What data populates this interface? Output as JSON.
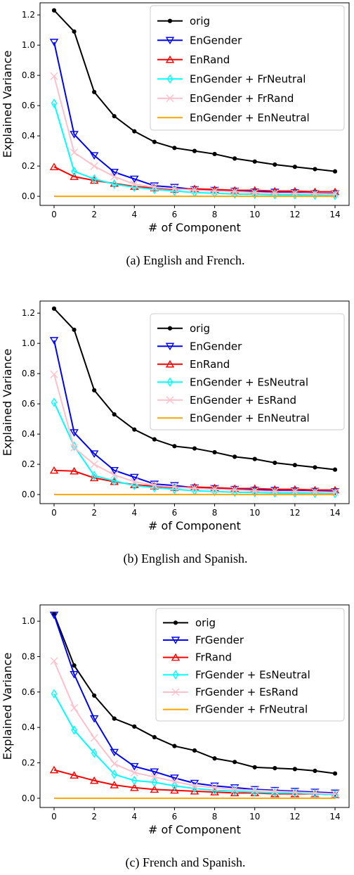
{
  "chart_data": [
    {
      "type": "line",
      "caption": "(a) English and French.",
      "xlabel": "# of Component",
      "ylabel": "Explained Variance",
      "xlim": [
        -0.7,
        14.7
      ],
      "ylim": [
        -0.06,
        1.28
      ],
      "xticks": [
        0,
        2,
        4,
        6,
        8,
        10,
        12,
        14
      ],
      "yticks": [
        0.0,
        0.2,
        0.4,
        0.6,
        0.8,
        1.0,
        1.2
      ],
      "ytick_labels": [
        "0.0",
        "0.2",
        "0.4",
        "0.6",
        "0.8",
        "1.0",
        "1.2"
      ],
      "legend_position": "upper-right",
      "grid": false,
      "x": [
        0,
        1,
        2,
        3,
        4,
        5,
        6,
        7,
        8,
        9,
        10,
        11,
        12,
        13,
        14
      ],
      "series": [
        {
          "name": "orig",
          "color": "#000000",
          "marker": "dot",
          "values": [
            1.23,
            1.09,
            0.69,
            0.53,
            0.43,
            0.36,
            0.32,
            0.3,
            0.28,
            0.25,
            0.23,
            0.21,
            0.195,
            0.18,
            0.165
          ]
        },
        {
          "name": "EnGender",
          "color": "#0000ff",
          "marker": "tri-down",
          "values": [
            1.02,
            0.41,
            0.27,
            0.16,
            0.115,
            0.07,
            0.06,
            0.045,
            0.04,
            0.035,
            0.03,
            0.028,
            0.025,
            0.02,
            0.018
          ]
        },
        {
          "name": "EnRand",
          "color": "#ff0000",
          "marker": "tri-up",
          "values": [
            0.195,
            0.13,
            0.105,
            0.085,
            0.065,
            0.055,
            0.045,
            0.05,
            0.045,
            0.04,
            0.04,
            0.035,
            0.035,
            0.03,
            0.03
          ]
        },
        {
          "name": "EnGender + FrNeutral",
          "color": "#00ffff",
          "marker": "diamond",
          "values": [
            0.615,
            0.165,
            0.115,
            0.08,
            0.06,
            0.045,
            0.035,
            0.025,
            0.02,
            0.015,
            0.013,
            0.01,
            0.01,
            0.008,
            0.006
          ]
        },
        {
          "name": "EnGender + FrRand",
          "color": "#ffc0cb",
          "marker": "x",
          "values": [
            0.795,
            0.29,
            0.2,
            0.13,
            0.08,
            0.06,
            0.05,
            0.04,
            0.035,
            0.03,
            0.025,
            0.02,
            0.02,
            0.018,
            0.015
          ]
        },
        {
          "name": "EnGender + EnNeutral",
          "color": "#ffa500",
          "marker": "none",
          "values": [
            0,
            0,
            0,
            0,
            0,
            0,
            0,
            0,
            0,
            0,
            0,
            0,
            0,
            0,
            0
          ]
        }
      ]
    },
    {
      "type": "line",
      "caption": "(b) English and Spanish.",
      "xlabel": "# of Component",
      "ylabel": "Explained Variance",
      "xlim": [
        -0.7,
        14.7
      ],
      "ylim": [
        -0.06,
        1.28
      ],
      "xticks": [
        0,
        2,
        4,
        6,
        8,
        10,
        12,
        14
      ],
      "yticks": [
        0.0,
        0.2,
        0.4,
        0.6,
        0.8,
        1.0,
        1.2
      ],
      "ytick_labels": [
        "0.0",
        "0.2",
        "0.4",
        "0.6",
        "0.8",
        "1.0",
        "1.2"
      ],
      "legend_position": "upper-right",
      "grid": false,
      "x": [
        0,
        1,
        2,
        3,
        4,
        5,
        6,
        7,
        8,
        9,
        10,
        11,
        12,
        13,
        14
      ],
      "series": [
        {
          "name": "orig",
          "color": "#000000",
          "marker": "dot",
          "values": [
            1.23,
            1.09,
            0.69,
            0.53,
            0.43,
            0.365,
            0.32,
            0.305,
            0.28,
            0.25,
            0.235,
            0.21,
            0.195,
            0.18,
            0.165
          ]
        },
        {
          "name": "EnGender",
          "color": "#0000ff",
          "marker": "tri-down",
          "values": [
            1.02,
            0.41,
            0.27,
            0.16,
            0.115,
            0.07,
            0.06,
            0.045,
            0.04,
            0.035,
            0.03,
            0.028,
            0.025,
            0.022,
            0.02
          ]
        },
        {
          "name": "EnRand",
          "color": "#ff0000",
          "marker": "tri-up",
          "values": [
            0.16,
            0.155,
            0.11,
            0.085,
            0.065,
            0.055,
            0.045,
            0.05,
            0.045,
            0.04,
            0.04,
            0.035,
            0.035,
            0.03,
            0.03
          ]
        },
        {
          "name": "EnGender + EsNeutral",
          "color": "#00ffff",
          "marker": "diamond",
          "values": [
            0.61,
            0.32,
            0.125,
            0.09,
            0.06,
            0.045,
            0.035,
            0.025,
            0.02,
            0.015,
            0.013,
            0.01,
            0.01,
            0.008,
            0.006
          ]
        },
        {
          "name": "EnGender + EsRand",
          "color": "#ffc0cb",
          "marker": "x",
          "values": [
            0.795,
            0.31,
            0.2,
            0.13,
            0.085,
            0.06,
            0.05,
            0.04,
            0.035,
            0.03,
            0.025,
            0.02,
            0.02,
            0.018,
            0.015
          ]
        },
        {
          "name": "EnGender + EnNeutral",
          "color": "#ffa500",
          "marker": "none",
          "values": [
            0,
            0,
            0,
            0,
            0,
            0,
            0,
            0,
            0,
            0,
            0,
            0,
            0,
            0,
            0
          ]
        }
      ]
    },
    {
      "type": "line",
      "caption": "(c) French and Spanish.",
      "xlabel": "# of Component",
      "ylabel": "Explained Variance",
      "xlim": [
        -0.7,
        14.7
      ],
      "ylim": [
        -0.052,
        1.092
      ],
      "xticks": [
        0,
        2,
        4,
        6,
        8,
        10,
        12,
        14
      ],
      "yticks": [
        0.0,
        0.2,
        0.4,
        0.6,
        0.8,
        1.0
      ],
      "ytick_labels": [
        "0.0",
        "0.2",
        "0.4",
        "0.6",
        "0.8",
        "1.0"
      ],
      "legend_position": "upper-right",
      "grid": false,
      "x": [
        0,
        1,
        2,
        3,
        4,
        5,
        6,
        7,
        8,
        9,
        10,
        11,
        12,
        13,
        14
      ],
      "series": [
        {
          "name": "orig",
          "color": "#000000",
          "marker": "dot",
          "values": [
            1.04,
            0.75,
            0.58,
            0.45,
            0.405,
            0.345,
            0.295,
            0.27,
            0.225,
            0.205,
            0.175,
            0.17,
            0.165,
            0.155,
            0.14
          ]
        },
        {
          "name": "FrGender",
          "color": "#0000ff",
          "marker": "tri-down",
          "values": [
            1.035,
            0.7,
            0.45,
            0.26,
            0.18,
            0.15,
            0.115,
            0.085,
            0.07,
            0.06,
            0.05,
            0.045,
            0.04,
            0.035,
            0.03
          ]
        },
        {
          "name": "FrRand",
          "color": "#ff0000",
          "marker": "tri-up",
          "values": [
            0.16,
            0.13,
            0.1,
            0.075,
            0.06,
            0.05,
            0.045,
            0.04,
            0.035,
            0.03,
            0.03,
            0.025,
            0.025,
            0.025,
            0.02
          ]
        },
        {
          "name": "FrGender + EsNeutral",
          "color": "#00ffff",
          "marker": "diamond",
          "values": [
            0.59,
            0.385,
            0.255,
            0.135,
            0.1,
            0.09,
            0.07,
            0.055,
            0.045,
            0.04,
            0.035,
            0.03,
            0.03,
            0.025,
            0.02
          ]
        },
        {
          "name": "FrGender + EsRand",
          "color": "#ffc0cb",
          "marker": "x",
          "values": [
            0.775,
            0.51,
            0.34,
            0.195,
            0.145,
            0.12,
            0.095,
            0.07,
            0.06,
            0.05,
            0.045,
            0.04,
            0.035,
            0.03,
            0.025
          ]
        },
        {
          "name": "FrGender + FrNeutral",
          "color": "#ffa500",
          "marker": "none",
          "values": [
            0,
            0,
            0,
            0,
            0,
            0,
            0,
            0,
            0,
            0,
            0,
            0,
            0,
            0,
            0
          ]
        }
      ]
    }
  ]
}
